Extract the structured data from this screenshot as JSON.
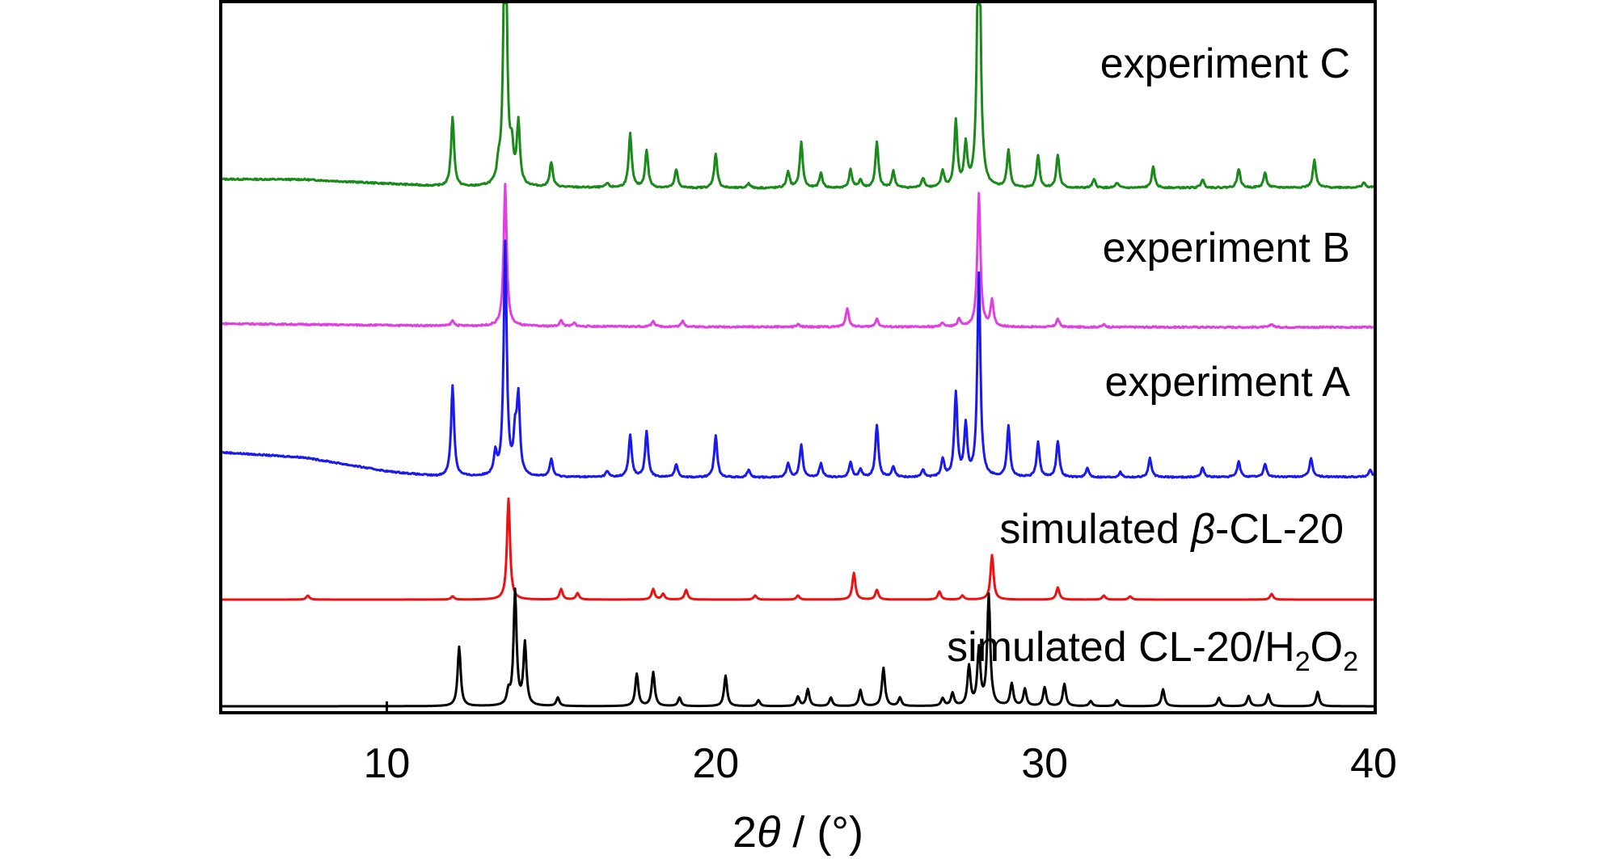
{
  "chart_data": {
    "type": "line",
    "xlabel_prefix": "2",
    "xlabel_symbol": "θ",
    "xlabel_suffix": " / (°)",
    "ylabel": "",
    "xlim": [
      5,
      40
    ],
    "x_ticks": [
      10,
      20,
      30,
      40
    ],
    "minor_ticks": [
      10
    ],
    "grid": false,
    "series": [
      {
        "name": "experiment C",
        "color": "#1a8a1a",
        "baseline": 0.84,
        "background": [
          [
            5,
            1.15
          ],
          [
            7.5,
            1.1
          ],
          [
            10,
            0.6
          ],
          [
            12,
            0.2
          ],
          [
            20,
            0.05
          ],
          [
            30,
            0.05
          ],
          [
            40,
            0.15
          ]
        ],
        "peaks": [
          [
            12.0,
            8.5
          ],
          [
            13.4,
            2.0
          ],
          [
            13.6,
            40
          ],
          [
            13.8,
            3.8
          ],
          [
            14.0,
            7.5
          ],
          [
            15.0,
            3.0
          ],
          [
            16.7,
            0.5
          ],
          [
            17.4,
            6.5
          ],
          [
            17.9,
            4.5
          ],
          [
            18.8,
            2.2
          ],
          [
            20.0,
            4.2
          ],
          [
            21.0,
            0.6
          ],
          [
            22.2,
            2.0
          ],
          [
            22.6,
            5.5
          ],
          [
            23.2,
            1.8
          ],
          [
            24.1,
            2.2
          ],
          [
            24.4,
            1.0
          ],
          [
            24.9,
            5.5
          ],
          [
            25.4,
            2.0
          ],
          [
            26.3,
            1.2
          ],
          [
            26.9,
            2.0
          ],
          [
            27.3,
            8.0
          ],
          [
            27.6,
            5.0
          ],
          [
            28.0,
            40
          ],
          [
            28.9,
            4.5
          ],
          [
            29.8,
            4.0
          ],
          [
            30.4,
            4.0
          ],
          [
            31.5,
            1.0
          ],
          [
            32.2,
            0.6
          ],
          [
            33.3,
            2.5
          ],
          [
            34.8,
            1.0
          ],
          [
            35.9,
            2.3
          ],
          [
            36.7,
            1.8
          ],
          [
            38.2,
            3.3
          ],
          [
            39.7,
            0.6
          ]
        ],
        "label": "experiment C"
      },
      {
        "name": "experiment B",
        "color": "#e040e0",
        "baseline": 0.5,
        "background": [
          [
            5,
            0.45
          ],
          [
            10,
            0.25
          ],
          [
            13,
            0.15
          ],
          [
            20,
            0.05
          ],
          [
            40,
            0.0
          ]
        ],
        "peaks": [
          [
            12.0,
            0.6
          ],
          [
            13.6,
            17.5
          ],
          [
            15.3,
            0.7
          ],
          [
            15.7,
            0.4
          ],
          [
            18.1,
            0.7
          ],
          [
            19.0,
            0.7
          ],
          [
            22.5,
            0.3
          ],
          [
            24.0,
            2.3
          ],
          [
            24.9,
            1.0
          ],
          [
            26.9,
            0.5
          ],
          [
            27.4,
            1.0
          ],
          [
            28.0,
            16.5
          ],
          [
            28.4,
            3.2
          ],
          [
            30.4,
            1.0
          ],
          [
            31.8,
            0.3
          ],
          [
            36.9,
            0.4
          ]
        ],
        "label": "experiment B"
      },
      {
        "name": "experiment A",
        "color": "#1a1aee",
        "baseline": 0.29,
        "background": [
          [
            5,
            3.5
          ],
          [
            7.5,
            2.8
          ],
          [
            10,
            0.9
          ],
          [
            11.5,
            0.2
          ],
          [
            13,
            0.15
          ],
          [
            20,
            0.05
          ],
          [
            30,
            0.05
          ],
          [
            40,
            0.15
          ]
        ],
        "peaks": [
          [
            12.0,
            12.5
          ],
          [
            13.3,
            3.0
          ],
          [
            13.6,
            32
          ],
          [
            13.9,
            5.0
          ],
          [
            14.0,
            10.5
          ],
          [
            15.0,
            2.4
          ],
          [
            16.7,
            0.8
          ],
          [
            17.4,
            5.8
          ],
          [
            17.9,
            6.2
          ],
          [
            18.8,
            1.8
          ],
          [
            20.0,
            5.8
          ],
          [
            21.0,
            1.0
          ],
          [
            22.2,
            2.0
          ],
          [
            22.6,
            4.5
          ],
          [
            23.2,
            1.9
          ],
          [
            24.1,
            2.1
          ],
          [
            24.4,
            1.0
          ],
          [
            24.9,
            7.2
          ],
          [
            25.4,
            1.4
          ],
          [
            26.3,
            1.0
          ],
          [
            26.9,
            2.5
          ],
          [
            27.3,
            11.5
          ],
          [
            27.6,
            7.0
          ],
          [
            28.0,
            28
          ],
          [
            28.9,
            7.0
          ],
          [
            29.8,
            4.8
          ],
          [
            30.4,
            5.0
          ],
          [
            31.3,
            1.2
          ],
          [
            32.3,
            0.7
          ],
          [
            33.2,
            2.6
          ],
          [
            34.8,
            1.3
          ],
          [
            35.9,
            2.1
          ],
          [
            36.7,
            1.8
          ],
          [
            38.1,
            2.6
          ],
          [
            39.9,
            1.0
          ]
        ],
        "label": "experiment A"
      },
      {
        "name": "simulated β-CL-20",
        "color": "#ee1111",
        "baseline": 0.0,
        "background": [],
        "peaks": [
          [
            7.6,
            0.5
          ],
          [
            12.0,
            0.4
          ],
          [
            13.7,
            12.5
          ],
          [
            15.3,
            1.3
          ],
          [
            15.8,
            0.8
          ],
          [
            18.1,
            1.3
          ],
          [
            18.4,
            0.7
          ],
          [
            19.1,
            1.2
          ],
          [
            21.2,
            0.5
          ],
          [
            22.5,
            0.5
          ],
          [
            24.2,
            3.3
          ],
          [
            24.9,
            1.2
          ],
          [
            26.8,
            1.0
          ],
          [
            27.5,
            0.5
          ],
          [
            28.4,
            5.5
          ],
          [
            30.4,
            1.5
          ],
          [
            31.8,
            0.5
          ],
          [
            32.6,
            0.4
          ],
          [
            36.9,
            0.7
          ]
        ],
        "label_prefix": "simulated ",
        "label_symbol": "β",
        "label_suffix": "-CL-20"
      },
      {
        "name": "simulated CL-20/H2O2",
        "color": "#000000",
        "baseline": 0.0,
        "background": [],
        "peaks": [
          [
            12.2,
            7.0
          ],
          [
            13.7,
            1.5
          ],
          [
            13.9,
            13.5
          ],
          [
            14.2,
            7.3
          ],
          [
            15.2,
            1.0
          ],
          [
            17.6,
            3.8
          ],
          [
            18.1,
            4.0
          ],
          [
            18.9,
            1.0
          ],
          [
            20.3,
            3.6
          ],
          [
            21.3,
            0.7
          ],
          [
            22.5,
            1.1
          ],
          [
            22.8,
            2.0
          ],
          [
            23.5,
            1.0
          ],
          [
            24.4,
            1.9
          ],
          [
            25.1,
            4.5
          ],
          [
            25.6,
            1.0
          ],
          [
            26.9,
            0.9
          ],
          [
            27.2,
            1.5
          ],
          [
            27.7,
            4.6
          ],
          [
            28.0,
            6.6
          ],
          [
            28.3,
            13.0
          ],
          [
            29.0,
            2.6
          ],
          [
            29.4,
            2.0
          ],
          [
            30.0,
            2.2
          ],
          [
            30.6,
            2.6
          ],
          [
            31.4,
            0.6
          ],
          [
            32.2,
            0.7
          ],
          [
            33.6,
            2.0
          ],
          [
            35.3,
            1.0
          ],
          [
            36.2,
            1.2
          ],
          [
            36.8,
            1.4
          ],
          [
            38.3,
            1.7
          ]
        ],
        "label_prefix": "simulated CL-20/H",
        "label_sub1": "2",
        "label_mid": "O",
        "label_sub2": "2"
      }
    ]
  }
}
